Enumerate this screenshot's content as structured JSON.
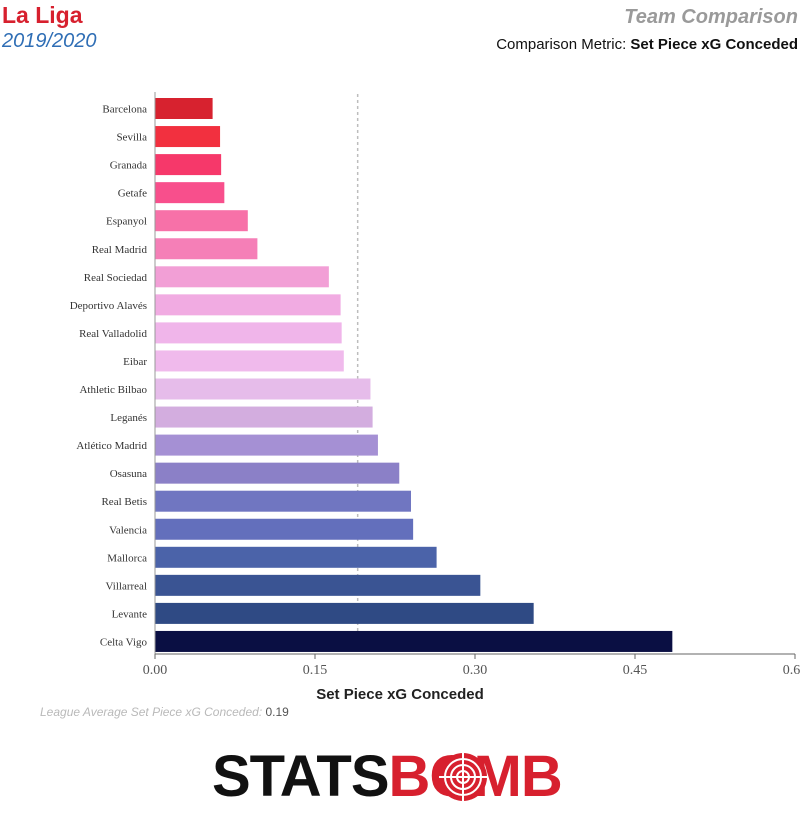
{
  "header": {
    "league": "La Liga",
    "season": "2019/2020",
    "title": "Team Comparison",
    "metric_prefix": "Comparison Metric:",
    "metric_name": "Set Piece xG Conceded"
  },
  "legend": {
    "avg_label": "League Average Set Piece xG Conceded:",
    "avg_value": "0.19"
  },
  "brand": {
    "stats": "STATS",
    "bomb": "BOMB"
  },
  "chart_data": {
    "type": "bar",
    "orientation": "horizontal",
    "xlabel": "Set Piece xG Conceded",
    "xlim": [
      0,
      0.6
    ],
    "xticks": [
      "0.00",
      "0.15",
      "0.30",
      "0.45",
      "0.60"
    ],
    "average": 0.19,
    "categories": [
      "Barcelona",
      "Sevilla",
      "Granada",
      "Getafe",
      "Espanyol",
      "Real Madrid",
      "Real Sociedad",
      "Deportivo Alavés",
      "Real Valladolid",
      "Eibar",
      "Athletic Bilbao",
      "Leganés",
      "Atlético Madrid",
      "Osasuna",
      "Real Betis",
      "Valencia",
      "Mallorca",
      "Villarreal",
      "Levante",
      "Celta Vigo"
    ],
    "values": [
      0.054,
      0.061,
      0.062,
      0.065,
      0.087,
      0.096,
      0.163,
      0.174,
      0.175,
      0.177,
      0.202,
      0.204,
      0.209,
      0.229,
      0.24,
      0.242,
      0.264,
      0.305,
      0.355,
      0.485
    ],
    "colors": [
      "#d7222f",
      "#f2303f",
      "#f6386a",
      "#f84f8c",
      "#f771a8",
      "#f57fb7",
      "#f29fd6",
      "#f1abe2",
      "#f0b5ea",
      "#f0baec",
      "#e6bcea",
      "#d3addf",
      "#a590d4",
      "#8b80c7",
      "#7076c1",
      "#636fbc",
      "#4b63a9",
      "#3a5493",
      "#2f4a84",
      "#0a0f43"
    ]
  }
}
